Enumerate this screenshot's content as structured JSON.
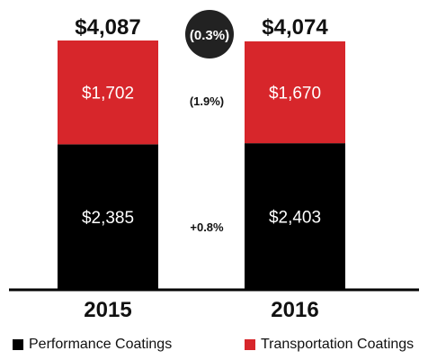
{
  "chart_data": {
    "type": "bar",
    "stacked": true,
    "categories": [
      "2015",
      "2016"
    ],
    "series": [
      {
        "name": "Performance Coatings",
        "color": "#000000",
        "values": [
          2385,
          2403
        ],
        "labels": [
          "$2,385",
          "$2,403"
        ]
      },
      {
        "name": "Transportation Coatings",
        "color": "#D7262B",
        "values": [
          1702,
          1670
        ],
        "labels": [
          "$1,702",
          "$1,670"
        ]
      }
    ],
    "totals": [
      4087,
      4074
    ],
    "total_labels": [
      "$4,087",
      "$4,074"
    ],
    "changes": [
      {
        "series": "Transportation Coatings",
        "label": "(1.9%)"
      },
      {
        "series": "Performance Coatings",
        "label": "+0.8%"
      }
    ],
    "total_change_label": "(0.3%)",
    "ylim": [
      0,
      4087
    ],
    "grid": false,
    "legend": "bottom"
  }
}
